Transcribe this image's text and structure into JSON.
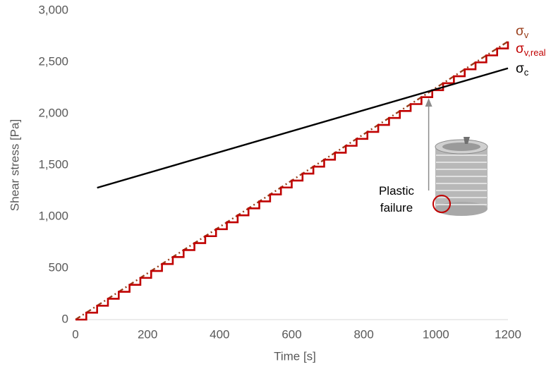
{
  "chart_data": {
    "type": "line",
    "xlabel": "Time [s]",
    "ylabel": "Shear stress [Pa]",
    "xlim": [
      0,
      1200
    ],
    "xticks": [
      0,
      200,
      400,
      600,
      800,
      1000,
      1200
    ],
    "ylim": [
      0,
      3000
    ],
    "yticks": [
      0,
      500,
      {
        "value": 1000,
        "label": "1,000"
      },
      {
        "value": 1500,
        "label": "1,500"
      },
      {
        "value": 2000,
        "label": "2,000"
      },
      {
        "value": 2500,
        "label": "2,500"
      },
      {
        "value": 3000,
        "label": "3,000"
      }
    ],
    "annotation": {
      "text": "Plastic\nfailure",
      "x": 980,
      "y": 2150
    },
    "series": [
      {
        "name": "σv",
        "color": "#993d1a",
        "dash": true,
        "x": [
          0,
          1200
        ],
        "values": [
          0,
          2700
        ]
      },
      {
        "name": "σv,real",
        "color": "#c00000",
        "step": true,
        "x": [
          0,
          30,
          60,
          90,
          120,
          150,
          180,
          210,
          240,
          270,
          300,
          330,
          360,
          390,
          420,
          450,
          480,
          510,
          540,
          570,
          600,
          630,
          660,
          690,
          720,
          750,
          780,
          810,
          840,
          870,
          900,
          930,
          960,
          990,
          1020,
          1050,
          1080,
          1110,
          1140,
          1170,
          1200
        ],
        "values": [
          0,
          67.5,
          135,
          202.5,
          270,
          337.5,
          405,
          472.5,
          540,
          607.5,
          675,
          742.5,
          810,
          877.5,
          945,
          1012.5,
          1080,
          1147.5,
          1215,
          1282.5,
          1350,
          1417.5,
          1485,
          1552.5,
          1620,
          1687.5,
          1755,
          1822.5,
          1890,
          1957.5,
          2025,
          2092.5,
          2160,
          2227.5,
          2295,
          2362.5,
          2430,
          2497.5,
          2565,
          2632.5,
          2700
        ]
      },
      {
        "name": "σc",
        "color": "#000000",
        "x": [
          60,
          1200
        ],
        "values": [
          1280,
          2440
        ]
      }
    ]
  }
}
